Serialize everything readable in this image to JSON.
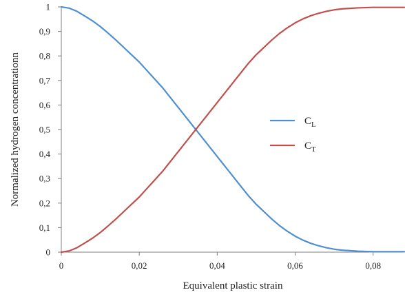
{
  "chart_data": {
    "type": "line",
    "title": "",
    "xlabel": "Equivalent plastic strain",
    "ylabel": "Normalized hydrogen concentrationn",
    "xlim": [
      0,
      0.088
    ],
    "ylim": [
      0,
      1
    ],
    "x_ticks": [
      0,
      0.02,
      0.04,
      0.06,
      0.08
    ],
    "x_tick_labels": [
      "0",
      "0,02",
      "0,04",
      "0,06",
      "0,08"
    ],
    "y_ticks": [
      0,
      0.1,
      0.2,
      0.3,
      0.4,
      0.5,
      0.6,
      0.7,
      0.8,
      0.9,
      1
    ],
    "y_tick_labels": [
      "0",
      "0,1",
      "0,2",
      "0,3",
      "0,4",
      "0,5",
      "0,6",
      "0,7",
      "0,8",
      "0,9",
      "1"
    ],
    "grid": false,
    "legend_position": "right",
    "x": [
      0,
      0.002,
      0.004,
      0.006,
      0.008,
      0.01,
      0.012,
      0.014,
      0.016,
      0.018,
      0.02,
      0.022,
      0.024,
      0.026,
      0.028,
      0.03,
      0.032,
      0.034,
      0.036,
      0.038,
      0.04,
      0.042,
      0.044,
      0.046,
      0.048,
      0.05,
      0.052,
      0.054,
      0.056,
      0.058,
      0.06,
      0.062,
      0.064,
      0.066,
      0.068,
      0.07,
      0.072,
      0.074,
      0.076,
      0.078,
      0.08,
      0.082,
      0.084,
      0.086,
      0.088
    ],
    "series": [
      {
        "name": "C",
        "subscript": "L",
        "color": "#4f8fd0",
        "values": [
          1.0,
          0.995,
          0.982,
          0.963,
          0.943,
          0.92,
          0.893,
          0.865,
          0.835,
          0.805,
          0.775,
          0.74,
          0.705,
          0.67,
          0.63,
          0.59,
          0.55,
          0.51,
          0.47,
          0.43,
          0.39,
          0.35,
          0.31,
          0.27,
          0.23,
          0.195,
          0.165,
          0.135,
          0.108,
          0.085,
          0.065,
          0.049,
          0.036,
          0.026,
          0.018,
          0.012,
          0.008,
          0.006,
          0.004,
          0.003,
          0.002,
          0.002,
          0.002,
          0.002,
          0.002
        ]
      },
      {
        "name": "C",
        "subscript": "T",
        "color": "#c0504d",
        "values": [
          0.0,
          0.005,
          0.018,
          0.037,
          0.057,
          0.08,
          0.107,
          0.135,
          0.165,
          0.195,
          0.225,
          0.26,
          0.295,
          0.33,
          0.37,
          0.41,
          0.45,
          0.49,
          0.53,
          0.57,
          0.61,
          0.65,
          0.69,
          0.73,
          0.77,
          0.805,
          0.835,
          0.865,
          0.892,
          0.915,
          0.935,
          0.951,
          0.964,
          0.974,
          0.982,
          0.988,
          0.992,
          0.994,
          0.996,
          0.997,
          0.998,
          0.998,
          0.998,
          0.998,
          0.998
        ]
      }
    ]
  }
}
